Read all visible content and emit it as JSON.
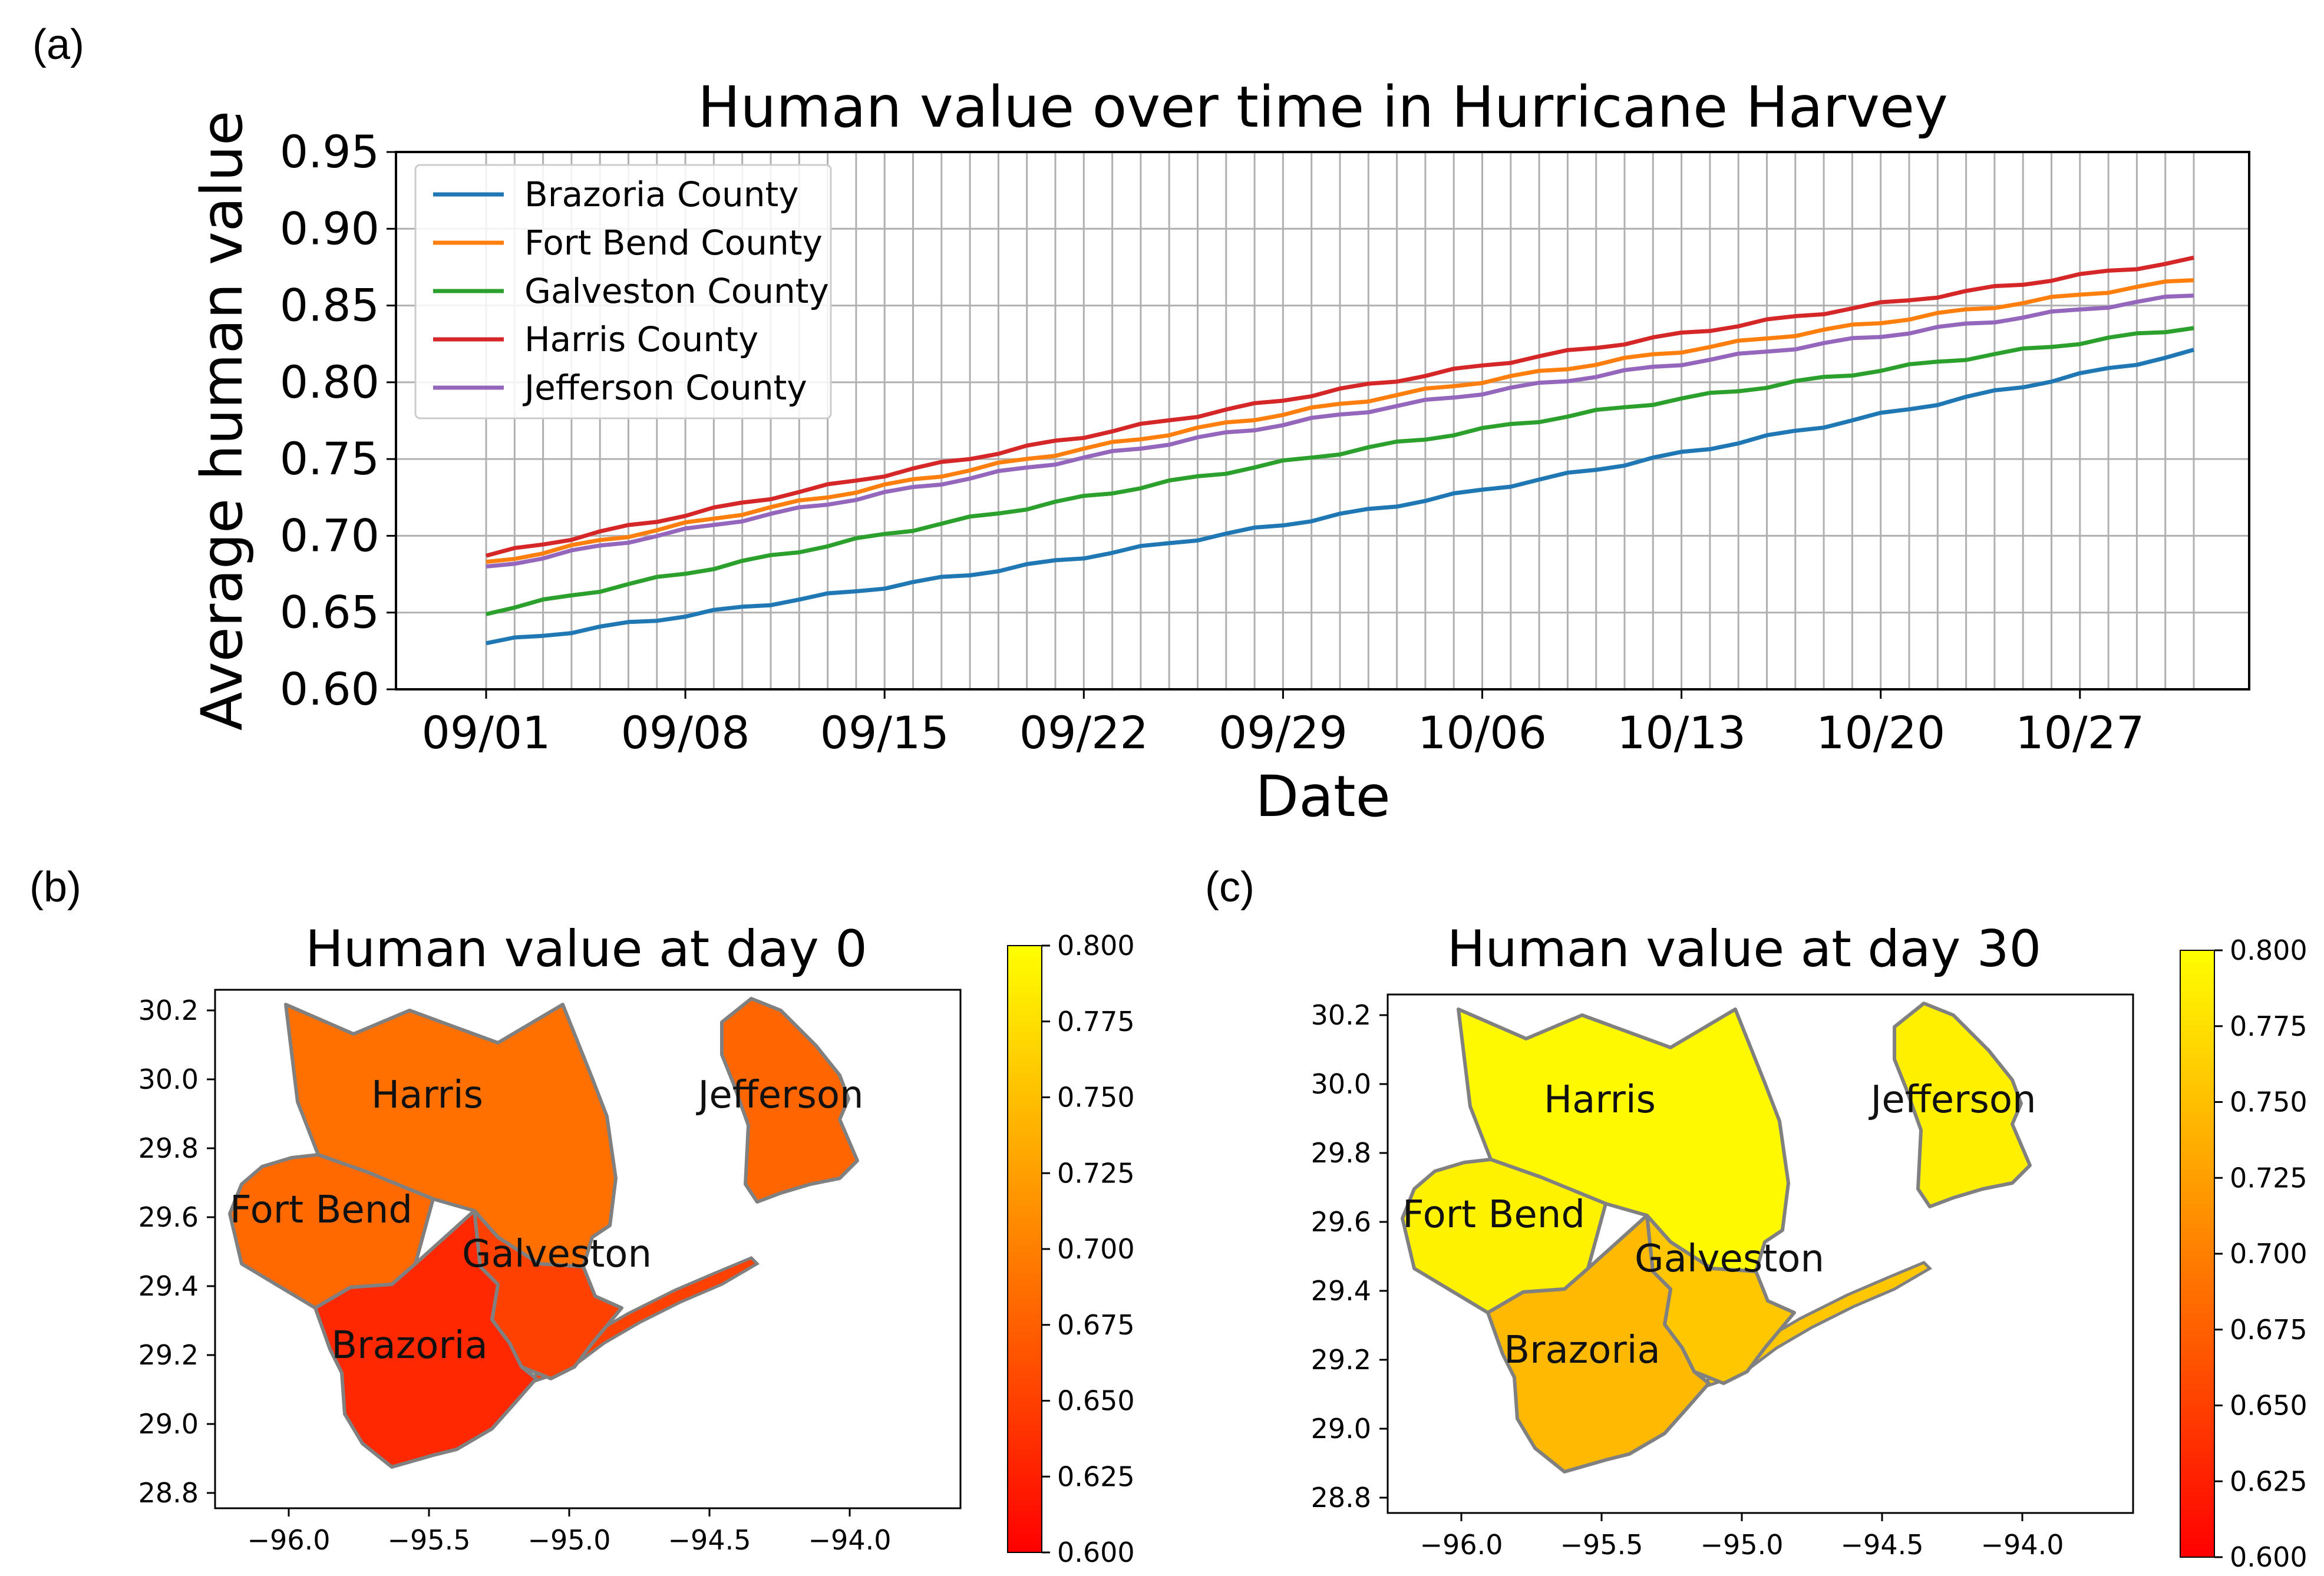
{
  "panels": {
    "a": "(a)",
    "b": "(b)",
    "c": "(c)"
  },
  "chart_data": [
    {
      "type": "line",
      "title": "Human value over time in Hurricane Harvey",
      "xlabel": "Date",
      "ylabel": "Average human value",
      "ylim": [
        0.6,
        0.95
      ],
      "yticks": [
        "0.60",
        "0.65",
        "0.70",
        "0.75",
        "0.80",
        "0.85",
        "0.90",
        "0.95"
      ],
      "xticks": [
        "09/01",
        "09/08",
        "09/15",
        "09/22",
        "09/29",
        "10/06",
        "10/13",
        "10/20",
        "10/27"
      ],
      "x_days": 60,
      "grid": true,
      "legend_position": "top-left",
      "series": [
        {
          "name": "Brazoria County",
          "color": "#1f77b4",
          "start": 0.63,
          "end": 0.82
        },
        {
          "name": "Fort Bend County",
          "color": "#ff7f0e",
          "start": 0.682,
          "end": 0.867
        },
        {
          "name": "Galveston County",
          "color": "#2ca02c",
          "start": 0.65,
          "end": 0.836
        },
        {
          "name": "Harris County",
          "color": "#d62728",
          "start": 0.687,
          "end": 0.88
        },
        {
          "name": "Jefferson County",
          "color": "#9467bd",
          "start": 0.679,
          "end": 0.857
        }
      ]
    },
    {
      "type": "choropleth",
      "title": "Human value at day 0",
      "xticks": [
        "−96.0",
        "−95.5",
        "−95.0",
        "−94.5",
        "−94.0"
      ],
      "yticks": [
        "30.2",
        "30.0",
        "29.8",
        "29.6",
        "29.4",
        "29.2",
        "29.0",
        "28.8"
      ],
      "colorbar_ticks": [
        "0.800",
        "0.775",
        "0.750",
        "0.725",
        "0.700",
        "0.675",
        "0.650",
        "0.625",
        "0.600"
      ],
      "colorbar_range": [
        0.6,
        0.8
      ],
      "regions": [
        {
          "name": "Harris",
          "value": 0.688
        },
        {
          "name": "Fort Bend",
          "value": 0.682
        },
        {
          "name": "Galveston",
          "value": 0.651
        },
        {
          "name": "Brazoria",
          "value": 0.631
        },
        {
          "name": "Jefferson",
          "value": 0.68
        }
      ]
    },
    {
      "type": "choropleth",
      "title": "Human value at day 30",
      "xticks": [
        "−96.0",
        "−95.5",
        "−95.0",
        "−94.5",
        "−94.0"
      ],
      "yticks": [
        "30.2",
        "30.0",
        "29.8",
        "29.6",
        "29.4",
        "29.2",
        "29.0",
        "28.8"
      ],
      "colorbar_ticks": [
        "0.800",
        "0.775",
        "0.750",
        "0.725",
        "0.700",
        "0.675",
        "0.650",
        "0.625",
        "0.600"
      ],
      "colorbar_range": [
        0.6,
        0.8
      ],
      "regions": [
        {
          "name": "Harris",
          "value": 0.795
        },
        {
          "name": "Fort Bend",
          "value": 0.79
        },
        {
          "name": "Galveston",
          "value": 0.756
        },
        {
          "name": "Brazoria",
          "value": 0.745
        },
        {
          "name": "Jefferson",
          "value": 0.788
        }
      ]
    }
  ]
}
